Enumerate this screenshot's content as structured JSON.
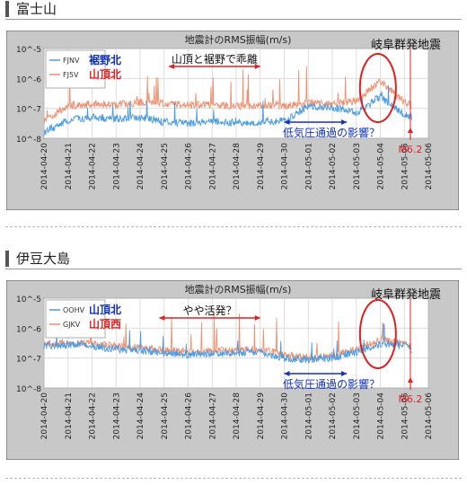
{
  "sections": [
    {
      "title": "富士山"
    },
    {
      "title": "伊豆大島"
    }
  ],
  "colors": {
    "series_a": "#4a9be0",
    "series_b": "#f08f6e",
    "panel_bg": "#c8c8c8",
    "plot_bg": "#ffffff",
    "red": "#e02020",
    "blue": "#1030c0"
  },
  "chart_data": [
    {
      "type": "line",
      "title": "地震計のRMS振幅(m/s)",
      "y_scale": "log",
      "ylim": [
        1e-08,
        1e-05
      ],
      "y_ticks": [
        "10^-5",
        "10^-6",
        "10^-7",
        "10^-8"
      ],
      "x": [
        "2014-04-20",
        "2014-04-21",
        "2014-04-22",
        "2014-04-23",
        "2014-04-24",
        "2014-04-25",
        "2014-04-26",
        "2014-04-27",
        "2014-04-28",
        "2014-04-29",
        "2014-04-30",
        "2014-05-01",
        "2014-05-02",
        "2014-05-03",
        "2014-05-04",
        "2014-05-05",
        "2014-05-06"
      ],
      "legend_position": "top-left",
      "series": [
        {
          "name": "FJNV",
          "label": "裾野北",
          "values": [
            1.6e-08,
            4e-08,
            5e-08,
            4.5e-08,
            5e-08,
            3.5e-08,
            3.2e-08,
            3.6e-08,
            3.3e-08,
            3.5e-08,
            3.8e-08,
            1.2e-07,
            1.1e-07,
            7e-08,
            2.5e-07,
            6e-08,
            4e-08
          ]
        },
        {
          "name": "FJ5V",
          "label": "山頂北",
          "values": [
            4e-08,
            1.2e-07,
            1.4e-07,
            1.3e-07,
            1.6e-07,
            1.5e-07,
            1.3e-07,
            1.4e-07,
            1.2e-07,
            1.3e-07,
            1.2e-07,
            1.5e-07,
            1.4e-07,
            1.8e-07,
            8e-07,
            1.6e-07,
            8e-08
          ]
        }
      ],
      "annotations": {
        "top": "山頂と裾野で乖離",
        "quake": "岐阜群発地震",
        "pressure": "低気圧通過の影響？",
        "magnitude": "M6.2"
      }
    },
    {
      "type": "line",
      "title": "地震計のRMS振幅(m/s)",
      "y_scale": "log",
      "ylim": [
        1e-08,
        1e-05
      ],
      "y_ticks": [
        "10^-5",
        "10^-6",
        "10^-7",
        "10^-8"
      ],
      "x": [
        "2014-04-20",
        "2014-04-21",
        "2014-04-22",
        "2014-04-23",
        "2014-04-24",
        "2014-04-25",
        "2014-04-26",
        "2014-04-27",
        "2014-04-28",
        "2014-04-29",
        "2014-04-30",
        "2014-05-01",
        "2014-05-02",
        "2014-05-03",
        "2014-05-04",
        "2014-05-05",
        "2014-05-06"
      ],
      "legend_position": "top-left",
      "series": [
        {
          "name": "OOHV",
          "label": "山頂北",
          "values": [
            2.6e-07,
            2.8e-07,
            2.5e-07,
            2e-07,
            1.8e-07,
            1.5e-07,
            1.3e-07,
            1.4e-07,
            1.5e-07,
            1.6e-07,
            1e-07,
            9e-08,
            1e-07,
            1.6e-07,
            3e-07,
            2.5e-07,
            1.1e-07
          ]
        },
        {
          "name": "GJKV",
          "label": "山頂西",
          "values": [
            3e-07,
            3.2e-07,
            3e-07,
            2.5e-07,
            2.2e-07,
            1.8e-07,
            1.6e-07,
            1.7e-07,
            1.8e-07,
            2e-07,
            1.2e-07,
            1.1e-07,
            1.2e-07,
            2e-07,
            4e-07,
            3e-07,
            1.3e-07
          ]
        }
      ],
      "annotations": {
        "top": "やや活発？",
        "quake": "岐阜群発地震",
        "pressure": "低気圧通過の影響？",
        "magnitude": "M6.2"
      }
    }
  ]
}
